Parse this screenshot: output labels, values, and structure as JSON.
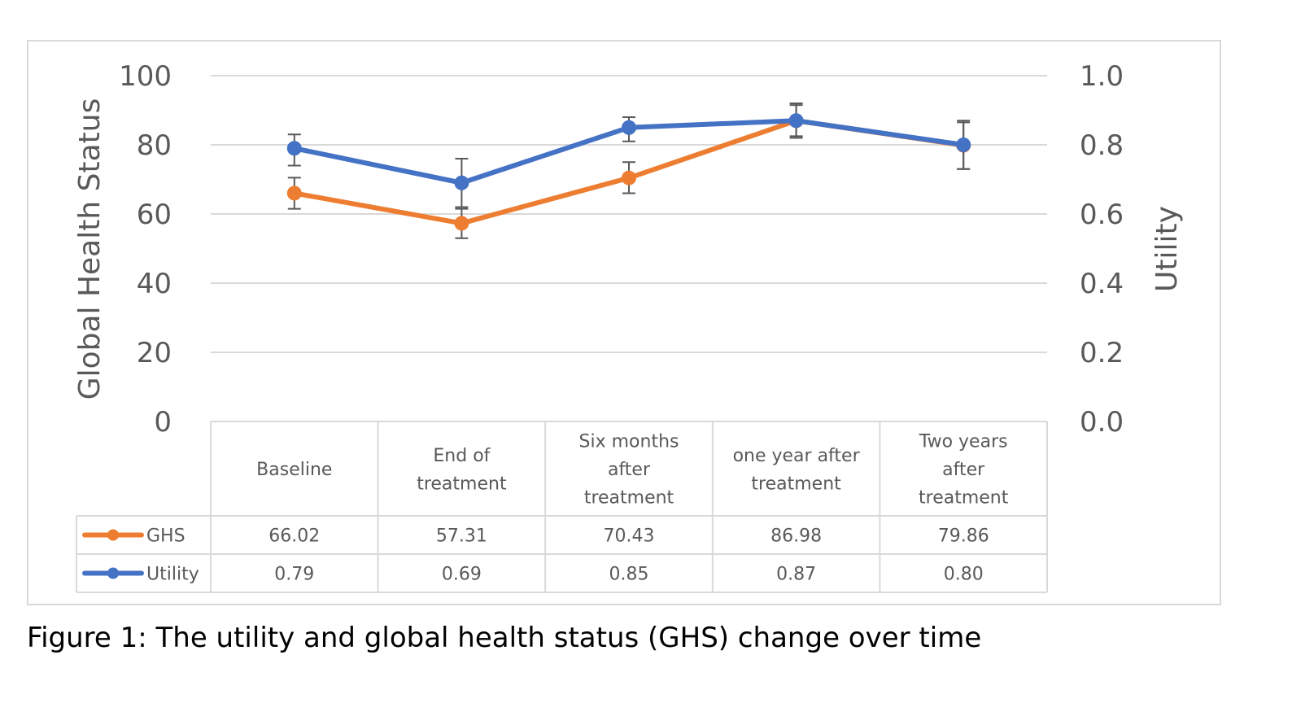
{
  "chart_data": {
    "type": "line",
    "categories": [
      [
        "Baseline"
      ],
      [
        "End of",
        "treatment"
      ],
      [
        "Six months",
        "after",
        "treatment"
      ],
      [
        "one year after",
        "treatment"
      ],
      [
        "Two years",
        "after",
        "treatment"
      ]
    ],
    "series": [
      {
        "name": "GHS",
        "axis": "left",
        "color": "#ED7D31",
        "values": [
          66.02,
          57.31,
          70.43,
          86.98,
          79.86
        ],
        "value_labels": [
          "66.02",
          "57.31",
          "70.43",
          "86.98",
          "79.86"
        ],
        "error_low": [
          61.5,
          53.0,
          66.0,
          82.5,
          73.0
        ],
        "error_high": [
          70.5,
          61.5,
          75.0,
          91.5,
          86.5
        ]
      },
      {
        "name": "Utility",
        "axis": "right",
        "color": "#4472C4",
        "values": [
          0.79,
          0.69,
          0.85,
          0.87,
          0.8
        ],
        "value_labels": [
          "0.79",
          "0.69",
          "0.85",
          "0.87",
          "0.80"
        ],
        "error_low": [
          0.74,
          0.62,
          0.81,
          0.82,
          0.73
        ],
        "error_high": [
          0.83,
          0.76,
          0.88,
          0.92,
          0.87
        ]
      }
    ],
    "ylabel": "Global Health Status",
    "ylabel_right": "Utility",
    "ylim": [
      0,
      100
    ],
    "ylim_right": [
      0,
      1.0
    ],
    "yticks": [
      "0",
      "20",
      "40",
      "60",
      "80",
      "100"
    ],
    "yticks_right": [
      "0.0",
      "0.2",
      "0.4",
      "0.6",
      "0.8",
      "1.0"
    ],
    "grid": true,
    "legend": "data-table",
    "colors": {
      "grid": "#d9d9d9",
      "text": "#595959",
      "error_bar": "#595959"
    }
  },
  "caption": "Figure 1: The utility and global health status (GHS) change over time"
}
